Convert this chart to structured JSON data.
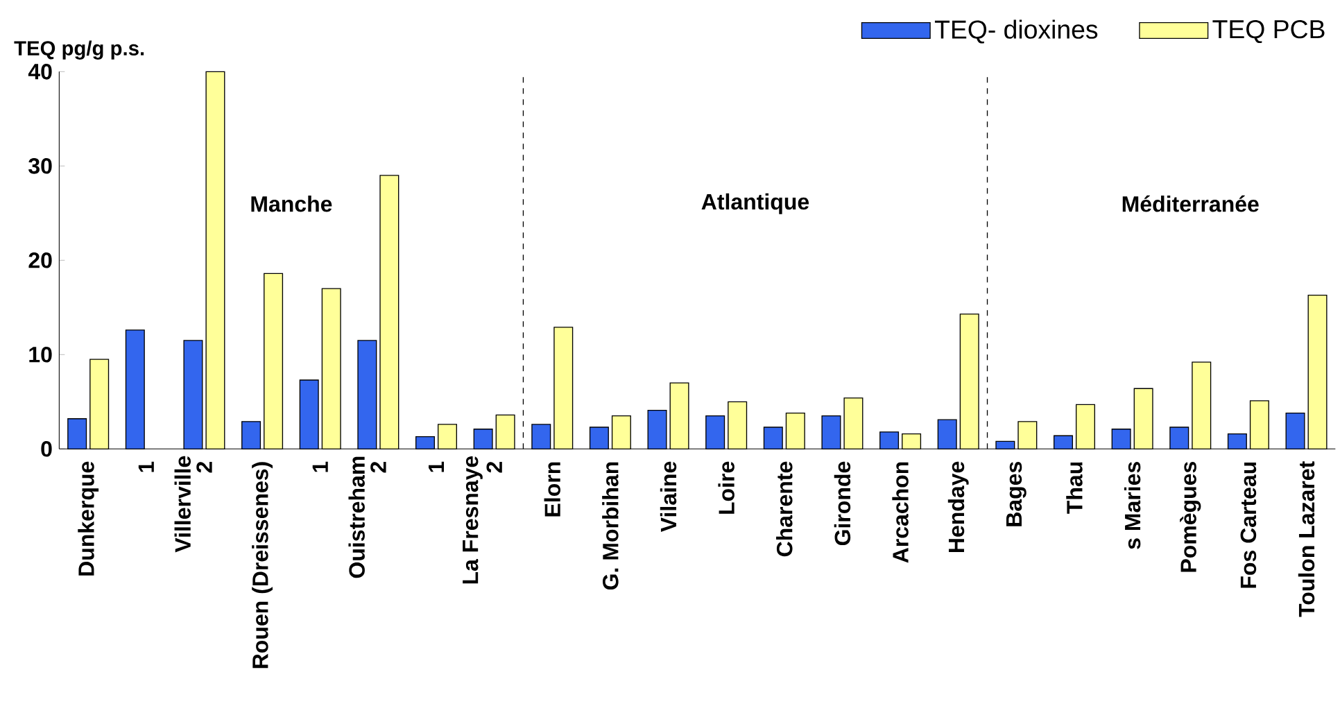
{
  "chart_data": {
    "type": "bar",
    "ylabel": "TEQ  pg/g p.s.",
    "categories": [
      "Dunkerque",
      "1",
      "2",
      "Rouen (Dreissenes)",
      "1",
      "2",
      "1",
      "2",
      "Elorn",
      "G. Morbihan",
      "Vilaine",
      "Loire",
      "Charente",
      "Gironde",
      "Arcachon",
      "Hendaye",
      "Bages",
      "Thau",
      "s Maries",
      "Pomègues",
      "Fos Carteau",
      "Toulon Lazaret"
    ],
    "series": [
      {
        "name": "TEQ- dioxines",
        "color": "#3366ee",
        "values": [
          3.2,
          12.6,
          11.5,
          2.9,
          7.3,
          11.5,
          1.3,
          2.1,
          2.6,
          2.3,
          4.1,
          3.5,
          2.3,
          3.5,
          1.8,
          3.1,
          0.8,
          1.4,
          2.1,
          2.3,
          1.6,
          3.8
        ]
      },
      {
        "name": "TEQ PCB",
        "color": "#ffff99",
        "values": [
          9.5,
          null,
          40,
          18.6,
          17.0,
          29.0,
          2.6,
          3.6,
          12.9,
          3.5,
          7.0,
          5.0,
          3.8,
          5.4,
          1.6,
          14.3,
          2.9,
          4.7,
          6.4,
          9.2,
          5.1,
          16.3
        ]
      }
    ],
    "ylim": [
      0,
      40
    ],
    "yticks": [
      0,
      10,
      20,
      30,
      40
    ],
    "grid": false,
    "legend": "top right",
    "annotations": [
      "Manche",
      "Atlantique",
      "Méditerranée",
      "Villerville",
      "Ouistreham",
      "La Fresnaye"
    ]
  }
}
